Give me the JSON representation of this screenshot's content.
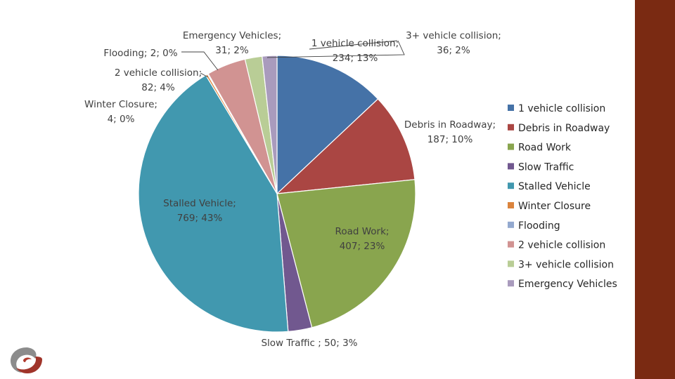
{
  "chart_data": {
    "type": "pie",
    "title": "",
    "series": [
      {
        "name": "1 vehicle collision",
        "value": 234,
        "percent": "13%",
        "color": "#4572A7",
        "label": "1 vehicle collision; 234; 13%"
      },
      {
        "name": "Debris in Roadway",
        "value": 187,
        "percent": "10%",
        "color": "#AA4643",
        "label": "Debris in Roadway; 187; 10%"
      },
      {
        "name": "Road Work",
        "value": 407,
        "percent": "23%",
        "color": "#89A54E",
        "label": "Road Work; 407; 23%"
      },
      {
        "name": "Slow Traffic",
        "value": 50,
        "percent": "3%",
        "color": "#71588F",
        "label": "Slow Traffic ; 50; 3%"
      },
      {
        "name": "Stalled Vehicle",
        "value": 769,
        "percent": "43%",
        "color": "#4198AF",
        "label": "Stalled Vehicle; 769; 43%"
      },
      {
        "name": "Winter Closure",
        "value": 4,
        "percent": "0%",
        "color": "#DB843D",
        "label": "Winter Closure; 4; 0%"
      },
      {
        "name": "Flooding",
        "value": 2,
        "percent": "0%",
        "color": "#93A9CF",
        "label": "Flooding; 2; 0%"
      },
      {
        "name": "2 vehicle collision",
        "value": 82,
        "percent": "4%",
        "color": "#D19392",
        "label": "2 vehicle collision; 82; 4%"
      },
      {
        "name": "3+ vehicle collision",
        "value": 36,
        "percent": "2%",
        "color": "#B9CD96",
        "label": "3+ vehicle collision; 36; 2%"
      },
      {
        "name": "Emergency Vehicles",
        "value": 31,
        "percent": "2%",
        "color": "#A99BBD",
        "label": "Emergency Vehicles; 31; 2%"
      }
    ],
    "legend_position": "right"
  },
  "theme": {
    "sidebar_color": "#7A2A12",
    "logo_icon": "swirl-logo-icon"
  }
}
